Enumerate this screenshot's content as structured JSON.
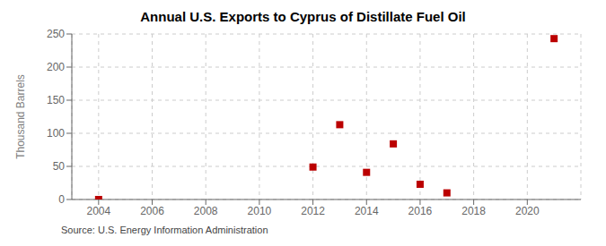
{
  "chart_data": {
    "type": "scatter",
    "title": "Annual U.S. Exports to Cyprus of Distillate Fuel Oil",
    "y_label": "Thousand Barrels",
    "annotations": [
      "Source: U.S. Energy Information Administration"
    ],
    "x": [
      2004,
      2012,
      2013,
      2014,
      2015,
      2016,
      2017,
      2021
    ],
    "values": [
      0,
      49,
      113,
      41,
      84,
      23,
      10,
      243
    ],
    "color": "#bb0000",
    "marker": "square",
    "xlim": [
      2003,
      2022
    ],
    "xticks": [
      2004,
      2006,
      2008,
      2010,
      2012,
      2014,
      2016,
      2018,
      2020
    ],
    "ylim": [
      0,
      250
    ],
    "yticks": [
      0,
      50,
      100,
      150,
      200,
      250
    ],
    "grid": true
  }
}
